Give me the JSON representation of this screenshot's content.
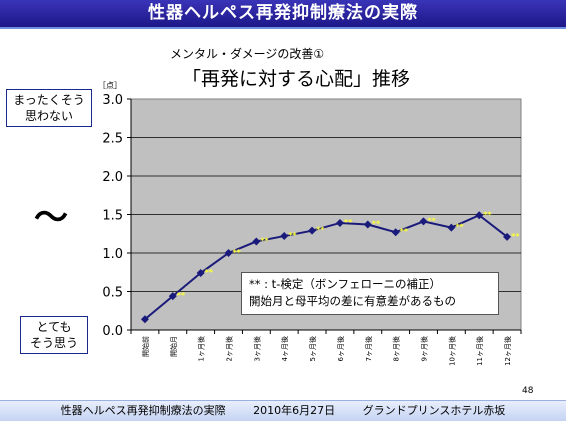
{
  "header": {
    "title": "性器ヘルペス再発抑制療法の実際"
  },
  "slide": {
    "subtitle": "メンタル・ダメージの改善①",
    "title": "「再発に対する心配」推移",
    "label_top": [
      "まったくそう",
      "思わない"
    ],
    "label_bottom": [
      "とても",
      "そう思う"
    ],
    "tilde": "〜",
    "unit": "［点］",
    "note_line1": "** : t-検定（ボンフェローニの補正）",
    "note_line2": "開始月と母平均の差に有意差があるもの",
    "page_number": "48"
  },
  "footer": {
    "title": "性器ヘルペス再発抑制療法の実際",
    "date": "2010年6月27日",
    "venue": "グランドプリンスホテル赤坂"
  },
  "chart_data": {
    "type": "line",
    "categories": [
      "開始前",
      "開始月",
      "1ヶ月後",
      "2ヶ月後",
      "3ヶ月後",
      "4ヶ月後",
      "5ヶ月後",
      "6ヶ月後",
      "7ヶ月後",
      "8ヶ月後",
      "9ヶ月後",
      "10ヶ月後",
      "11ヶ月後",
      "12ヶ月後"
    ],
    "values": [
      0.14,
      0.44,
      0.74,
      1.0,
      1.15,
      1.22,
      1.29,
      1.39,
      1.37,
      1.27,
      1.41,
      1.33,
      1.49,
      1.21
    ],
    "significance": [
      "",
      "**",
      "**",
      "**",
      "**",
      "**",
      "**",
      "**",
      "**",
      "**",
      "**",
      "**",
      "**",
      "**"
    ],
    "ylim": [
      0,
      3.0
    ],
    "yticks": [
      "0.0",
      "0.5",
      "1.0",
      "1.5",
      "2.0",
      "2.5",
      "3.0"
    ],
    "grid": true,
    "colors": {
      "plot_bg": "#c0c0c0",
      "line": "#1a1a7a",
      "marker": "#1a1a7a",
      "significance": "#ffff33"
    }
  }
}
